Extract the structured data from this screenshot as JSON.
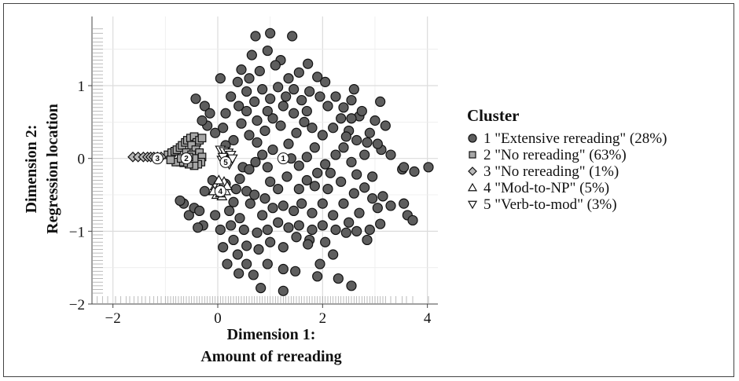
{
  "chart_data": {
    "type": "scatter",
    "title": "",
    "xlabel_lines": [
      "Dimension 1:",
      "Amount of rereading"
    ],
    "ylabel_lines": [
      "Dimension 2:",
      "Regression location"
    ],
    "xlim": [
      -2.4,
      4.2
    ],
    "ylim": [
      -2.0,
      1.95
    ],
    "x_ticks": [
      -2,
      0,
      2,
      4
    ],
    "y_ticks": [
      -2,
      -1,
      0,
      1
    ],
    "grid": true,
    "rug": true,
    "legend_position": "right",
    "legend_title": "Cluster",
    "series": [
      {
        "id": 1,
        "name": "1 \"Extensive rereading\" (28%)",
        "marker": "circle",
        "color": "#5e5e5e",
        "centroid": [
          1.25,
          0.0
        ],
        "centroid_label": "1",
        "points": [
          [
            1.0,
            1.72
          ],
          [
            0.72,
            1.68
          ],
          [
            1.42,
            1.68
          ],
          [
            0.95,
            1.48
          ],
          [
            0.65,
            1.42
          ],
          [
            1.2,
            1.35
          ],
          [
            1.72,
            1.3
          ],
          [
            1.9,
            1.12
          ],
          [
            2.05,
            1.05
          ],
          [
            0.38,
            1.05
          ],
          [
            0.05,
            1.1
          ],
          [
            -0.42,
            0.82
          ],
          [
            -0.25,
            0.72
          ],
          [
            2.6,
            0.95
          ],
          [
            2.7,
            0.58
          ],
          [
            3.1,
            0.78
          ],
          [
            3.0,
            0.52
          ],
          [
            3.2,
            0.45
          ],
          [
            2.85,
            0.22
          ],
          [
            3.12,
            0.12
          ],
          [
            3.3,
            0.05
          ],
          [
            3.52,
            -0.15
          ],
          [
            3.55,
            -0.12
          ],
          [
            3.75,
            -0.18
          ],
          [
            4.02,
            -0.12
          ],
          [
            3.62,
            -0.78
          ],
          [
            3.72,
            -0.85
          ],
          [
            3.55,
            -0.62
          ],
          [
            3.15,
            -0.52
          ],
          [
            3.05,
            -0.68
          ],
          [
            3.1,
            -0.9
          ],
          [
            2.9,
            -0.98
          ],
          [
            2.45,
            -1.02
          ],
          [
            2.85,
            -1.12
          ],
          [
            1.75,
            -1.12
          ],
          [
            1.25,
            -1.22
          ],
          [
            2.2,
            -1.32
          ],
          [
            1.95,
            -1.45
          ],
          [
            1.48,
            -1.55
          ],
          [
            1.25,
            -1.52
          ],
          [
            0.95,
            -1.45
          ],
          [
            0.55,
            -1.45
          ],
          [
            0.4,
            -1.58
          ],
          [
            0.82,
            -1.78
          ],
          [
            1.25,
            -1.82
          ],
          [
            2.3,
            -1.65
          ],
          [
            2.55,
            -1.75
          ],
          [
            1.72,
            -1.18
          ],
          [
            0.38,
            -1.32
          ],
          [
            0.1,
            -1.22
          ],
          [
            0.55,
            -1.2
          ],
          [
            0.78,
            -1.25
          ],
          [
            0.3,
            -1.12
          ],
          [
            -0.28,
            -0.92
          ],
          [
            -0.38,
            -0.95
          ],
          [
            -0.55,
            -0.78
          ],
          [
            -0.65,
            -0.62
          ],
          [
            -0.72,
            -0.58
          ],
          [
            -0.45,
            -0.68
          ],
          [
            -0.35,
            -0.72
          ],
          [
            -0.05,
            -0.78
          ],
          [
            0.22,
            -0.72
          ],
          [
            0.42,
            -0.82
          ],
          [
            0.62,
            -0.62
          ],
          [
            0.85,
            -0.78
          ],
          [
            0.55,
            -0.45
          ],
          [
            0.7,
            -0.5
          ],
          [
            0.35,
            -0.42
          ],
          [
            0.42,
            -0.28
          ],
          [
            0.48,
            -0.12
          ],
          [
            0.6,
            -0.15
          ],
          [
            0.72,
            -0.05
          ],
          [
            0.85,
            0.05
          ],
          [
            0.95,
            -0.12
          ],
          [
            1.05,
            0.12
          ],
          [
            1.55,
            -0.1
          ],
          [
            1.7,
            0.02
          ],
          [
            1.85,
            0.15
          ],
          [
            2.05,
            -0.08
          ],
          [
            2.25,
            0.05
          ],
          [
            2.4,
            0.15
          ],
          [
            2.55,
            -0.05
          ],
          [
            2.65,
            -0.22
          ],
          [
            2.35,
            -0.32
          ],
          [
            2.1,
            -0.42
          ],
          [
            1.85,
            -0.38
          ],
          [
            1.55,
            -0.42
          ],
          [
            1.32,
            -0.25
          ],
          [
            1.15,
            -0.42
          ],
          [
            1.0,
            -0.32
          ],
          [
            0.9,
            -0.55
          ],
          [
            1.05,
            -0.68
          ],
          [
            1.25,
            -0.65
          ],
          [
            1.45,
            -0.72
          ],
          [
            1.6,
            -0.62
          ],
          [
            1.8,
            -0.75
          ],
          [
            2.0,
            -0.62
          ],
          [
            2.2,
            -0.78
          ],
          [
            2.4,
            -0.62
          ],
          [
            2.6,
            -0.48
          ],
          [
            2.8,
            -0.4
          ],
          [
            2.95,
            -0.25
          ],
          [
            2.7,
            -0.75
          ],
          [
            2.5,
            -0.88
          ],
          [
            2.25,
            -0.98
          ],
          [
            2.0,
            -0.92
          ],
          [
            1.8,
            -0.98
          ],
          [
            1.55,
            -0.92
          ],
          [
            1.35,
            -0.95
          ],
          [
            1.15,
            -0.88
          ],
          [
            0.95,
            -0.98
          ],
          [
            0.75,
            -1.02
          ],
          [
            0.5,
            -0.98
          ],
          [
            0.25,
            -0.92
          ],
          [
            0.05,
            -0.98
          ],
          [
            1.35,
            0.2
          ],
          [
            1.5,
            0.35
          ],
          [
            1.65,
            0.5
          ],
          [
            1.8,
            0.42
          ],
          [
            2.0,
            0.32
          ],
          [
            2.2,
            0.42
          ],
          [
            2.35,
            0.55
          ],
          [
            2.5,
            0.38
          ],
          [
            2.65,
            0.25
          ],
          [
            2.8,
            0.05
          ],
          [
            1.2,
            0.45
          ],
          [
            1.05,
            0.55
          ],
          [
            0.9,
            0.38
          ],
          [
            0.75,
            0.52
          ],
          [
            0.6,
            0.32
          ],
          [
            0.45,
            0.48
          ],
          [
            0.3,
            0.25
          ],
          [
            0.15,
            0.62
          ],
          [
            0.25,
            0.85
          ],
          [
            0.4,
            0.72
          ],
          [
            0.55,
            0.92
          ],
          [
            0.7,
            0.78
          ],
          [
            0.85,
            0.95
          ],
          [
            1.0,
            0.82
          ],
          [
            1.15,
            0.98
          ],
          [
            1.3,
            0.85
          ],
          [
            1.45,
            0.95
          ],
          [
            1.6,
            0.8
          ],
          [
            1.75,
            0.92
          ],
          [
            1.95,
            0.85
          ],
          [
            2.1,
            0.72
          ],
          [
            2.25,
            0.85
          ],
          [
            2.4,
            0.7
          ],
          [
            2.55,
            0.8
          ],
          [
            1.35,
            1.1
          ],
          [
            1.55,
            1.18
          ],
          [
            0.8,
            1.2
          ],
          [
            0.6,
            1.1
          ],
          [
            1.1,
            1.28
          ],
          [
            0.45,
            1.22
          ],
          [
            -0.15,
            0.62
          ],
          [
            -0.2,
            0.45
          ],
          [
            -0.05,
            0.35
          ],
          [
            0.1,
            0.42
          ],
          [
            -0.45,
            0.28
          ],
          [
            -0.3,
            0.52
          ],
          [
            0.15,
            0.18
          ],
          [
            -0.1,
            -0.3
          ],
          [
            0.15,
            -0.35
          ],
          [
            -0.25,
            -0.45
          ],
          [
            0.3,
            -0.6
          ],
          [
            1.9,
            -0.2
          ],
          [
            1.7,
            -0.3
          ],
          [
            2.15,
            -0.2
          ],
          [
            2.45,
            0.3
          ],
          [
            2.9,
            0.35
          ],
          [
            3.05,
            0.2
          ],
          [
            2.75,
            0.65
          ],
          [
            2.55,
            0.55
          ],
          [
            1.7,
            0.65
          ],
          [
            1.45,
            0.62
          ],
          [
            1.25,
            0.72
          ],
          [
            0.95,
            0.65
          ],
          [
            0.75,
            0.22
          ],
          [
            0.55,
            0.65
          ],
          [
            1.0,
            -1.15
          ],
          [
            1.5,
            -1.08
          ],
          [
            2.05,
            -1.15
          ],
          [
            2.65,
            -1.0
          ],
          [
            3.3,
            -0.65
          ],
          [
            0.18,
            -1.45
          ],
          [
            0.68,
            -1.6
          ],
          [
            1.9,
            -1.62
          ],
          [
            1.4,
            0.0
          ],
          [
            2.95,
            -0.55
          ]
        ]
      },
      {
        "id": 2,
        "name": "2 \"No rereading\" (63%)",
        "marker": "square",
        "color": "#a6a6a6",
        "centroid": [
          -0.6,
          0.0
        ],
        "centroid_label": "2",
        "points": [
          [
            -0.95,
            0.05
          ],
          [
            -0.88,
            0.08
          ],
          [
            -0.82,
            0.1
          ],
          [
            -0.78,
            0.12
          ],
          [
            -0.72,
            0.15
          ],
          [
            -0.68,
            0.18
          ],
          [
            -0.62,
            0.22
          ],
          [
            -0.58,
            0.25
          ],
          [
            -0.52,
            0.28
          ],
          [
            -0.45,
            0.3
          ],
          [
            -0.4,
            0.22
          ],
          [
            -0.35,
            0.25
          ],
          [
            -0.3,
            0.28
          ],
          [
            -0.5,
            0.18
          ],
          [
            -0.42,
            0.12
          ],
          [
            -0.35,
            0.08
          ],
          [
            -0.3,
            0.02
          ],
          [
            -0.32,
            -0.05
          ],
          [
            -0.38,
            -0.08
          ],
          [
            -0.45,
            -0.1
          ],
          [
            -0.55,
            -0.08
          ],
          [
            -0.65,
            -0.06
          ],
          [
            -0.72,
            -0.05
          ],
          [
            -0.8,
            -0.05
          ],
          [
            -0.9,
            -0.02
          ],
          [
            -0.6,
            0.08
          ],
          [
            -0.5,
            0.05
          ],
          [
            -0.7,
            0.0
          ],
          [
            -0.45,
            0.0
          ],
          [
            -0.55,
            0.02
          ]
        ]
      },
      {
        "id": 3,
        "name": "3 \"No rereading\" (1%)",
        "marker": "diamond",
        "color": "#b8b8b8",
        "centroid": [
          -1.15,
          0.0
        ],
        "centroid_label": "3",
        "points": [
          [
            -1.62,
            0.02
          ],
          [
            -1.52,
            0.02
          ],
          [
            -1.42,
            0.02
          ],
          [
            -1.34,
            0.02
          ],
          [
            -1.28,
            0.02
          ],
          [
            -1.22,
            0.02
          ],
          [
            -1.15,
            0.02
          ],
          [
            -1.08,
            0.02
          ]
        ]
      },
      {
        "id": 4,
        "name": "4 \"Mod-to-NP\" (5%)",
        "marker": "triangle-up",
        "color": "#ffffff",
        "centroid": [
          0.05,
          -0.45
        ],
        "centroid_label": "4",
        "points": [
          [
            -0.05,
            -0.38
          ],
          [
            0.0,
            -0.42
          ],
          [
            0.05,
            -0.35
          ],
          [
            0.1,
            -0.4
          ],
          [
            0.15,
            -0.45
          ],
          [
            -0.02,
            -0.5
          ],
          [
            0.08,
            -0.52
          ],
          [
            0.12,
            -0.32
          ],
          [
            0.02,
            -0.3
          ],
          [
            -0.08,
            -0.45
          ],
          [
            0.18,
            -0.38
          ],
          [
            0.05,
            -0.48
          ]
        ]
      },
      {
        "id": 5,
        "name": "5 \"Verb-to-mod\" (3%)",
        "marker": "triangle-down",
        "color": "#ffffff",
        "centroid": [
          0.15,
          -0.05
        ],
        "centroid_label": "5",
        "points": [
          [
            0.05,
            0.12
          ],
          [
            0.12,
            0.1
          ],
          [
            0.2,
            0.08
          ],
          [
            0.25,
            0.05
          ],
          [
            0.08,
            -0.02
          ],
          [
            0.18,
            -0.05
          ],
          [
            0.22,
            -0.08
          ],
          [
            0.1,
            0.02
          ],
          [
            0.28,
            0.0
          ]
        ]
      }
    ],
    "rug_x": [
      -2.3,
      -2.2,
      -2.1,
      -1.95,
      -1.85,
      -1.75,
      -1.68,
      -1.6,
      -1.52,
      -1.45,
      -1.38,
      -1.3,
      -1.22,
      -1.15,
      -1.08,
      -1.0,
      -0.95,
      -0.9,
      -0.85,
      -0.8,
      -0.75,
      -0.7,
      -0.65,
      -0.6,
      -0.55,
      -0.5,
      -0.45,
      -0.4,
      -0.35,
      -0.3,
      -0.25,
      -0.2,
      -0.15,
      -0.1,
      -0.05,
      0.0,
      0.05,
      0.1,
      0.15,
      0.2,
      0.25,
      0.3,
      0.35,
      0.4,
      0.45,
      0.5,
      0.55,
      0.6,
      0.65,
      0.7,
      0.75,
      0.8,
      0.85,
      0.9,
      0.95,
      1.0,
      1.05,
      1.1,
      1.15,
      1.2,
      1.25,
      1.3,
      1.35,
      1.4,
      1.45,
      1.5,
      1.55,
      1.6,
      1.65,
      1.7,
      1.75,
      1.8,
      1.85,
      1.9,
      1.95,
      2.0,
      2.05,
      2.1,
      2.15,
      2.2,
      2.25,
      2.3,
      2.35,
      2.4,
      2.45,
      2.5,
      2.55,
      2.6,
      2.65,
      2.7,
      2.75,
      2.8,
      2.85,
      2.9,
      2.95,
      3.0,
      3.05,
      3.1,
      3.15,
      3.2,
      3.3,
      3.4,
      3.52,
      3.6,
      3.72,
      4.02
    ],
    "rug_y": [
      1.78,
      1.72,
      1.65,
      1.6,
      1.55,
      1.5,
      1.45,
      1.4,
      1.35,
      1.3,
      1.25,
      1.2,
      1.15,
      1.1,
      1.05,
      1.0,
      0.95,
      0.9,
      0.85,
      0.8,
      0.75,
      0.7,
      0.65,
      0.6,
      0.55,
      0.5,
      0.45,
      0.4,
      0.35,
      0.3,
      0.25,
      0.2,
      0.15,
      0.1,
      0.05,
      0.0,
      -0.05,
      -0.1,
      -0.15,
      -0.2,
      -0.25,
      -0.3,
      -0.35,
      -0.4,
      -0.45,
      -0.5,
      -0.55,
      -0.6,
      -0.65,
      -0.7,
      -0.75,
      -0.8,
      -0.85,
      -0.9,
      -0.95,
      -1.0,
      -1.05,
      -1.1,
      -1.15,
      -1.2,
      -1.25,
      -1.3,
      -1.35,
      -1.4,
      -1.45,
      -1.5,
      -1.55,
      -1.6,
      -1.65,
      -1.7,
      -1.75,
      -1.8,
      -1.85
    ]
  }
}
